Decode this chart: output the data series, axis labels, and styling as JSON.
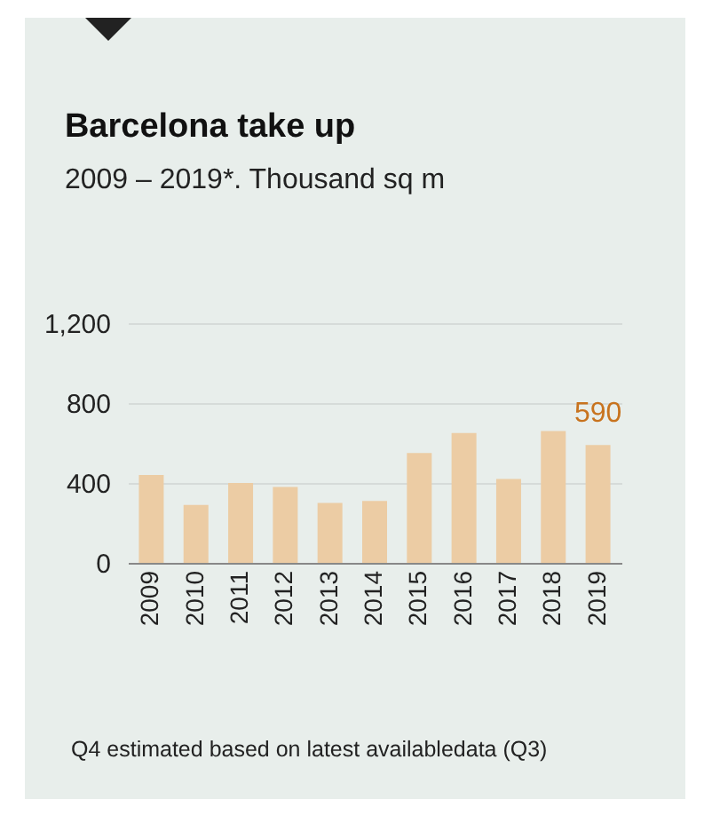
{
  "chart_data": {
    "type": "bar",
    "title": "Barcelona take up",
    "subtitle": "2009 – 2019*. Thousand sq m",
    "categories": [
      "2009",
      "2010",
      "2011",
      "2012",
      "2013",
      "2014",
      "2015",
      "2016",
      "2017",
      "2018",
      "2019"
    ],
    "values": [
      440,
      290,
      400,
      380,
      300,
      310,
      550,
      650,
      420,
      660,
      590
    ],
    "value_labels": [
      null,
      null,
      null,
      null,
      null,
      null,
      null,
      null,
      null,
      null,
      "590"
    ],
    "color": "#eccca4",
    "ylim": [
      0,
      1200
    ],
    "yticks": [
      0,
      400,
      800,
      {
        "value": 1200,
        "label": "1,200"
      }
    ],
    "grid": "y",
    "annotations": [
      "Q4 estimated based on latest availabledata (Q3)"
    ]
  }
}
